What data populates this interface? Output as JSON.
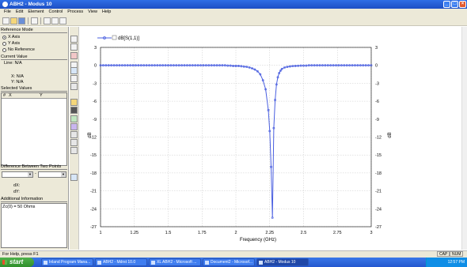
{
  "window": {
    "title": "ABH2 - Modus 10"
  },
  "menu": [
    "File",
    "Edit",
    "Element",
    "Control",
    "Process",
    "View",
    "Help"
  ],
  "left": {
    "reference_mode": {
      "title": "Reference Mode",
      "options": [
        "X Axis",
        "Y Axis",
        "No Reference"
      ],
      "selected": 0
    },
    "current_value": {
      "title": "Current Value",
      "line": "Line: N/A",
      "x": "X: N/A",
      "y": "Y: N/A"
    },
    "selected_values": {
      "title": "Selected Values",
      "columns": [
        "#",
        "X",
        "Y"
      ]
    },
    "difference": {
      "title": "Difference Between Two Points",
      "dx": "dX:",
      "dy": "dY:"
    },
    "additional": {
      "title": "Additional Information",
      "text": "Zc(0) = 50 Ohms"
    }
  },
  "status": {
    "text": "For Help, press F1",
    "caps": "CAP",
    "num": "NUM"
  },
  "taskbar": {
    "start": "start",
    "tasks": [
      "Inland Program Mana...",
      "ABH2 - Mdrst 10.0",
      "XL ABH2 - Microsoft ...",
      "Document2 - Microsof...",
      "ABH2 - Modus 10"
    ],
    "clock": "12:57 PM"
  },
  "chart_data": {
    "type": "line",
    "legend": "dB[S(1,1)]",
    "xlabel": "Frequency (GHz)",
    "ylabel": "dB",
    "xlim": [
      1,
      3
    ],
    "ylim": [
      -27,
      3
    ],
    "xticks": [
      1,
      1.25,
      1.5,
      1.75,
      2,
      2.25,
      2.5,
      2.75,
      3
    ],
    "yticks": [
      3,
      0,
      -3,
      -6,
      -9,
      -12,
      -15,
      -18,
      -21,
      -24,
      -27
    ],
    "xtick_labels": [
      "1",
      "1.25",
      "1.5",
      "1.75",
      "2",
      "2.25",
      "2.5",
      "2.75",
      "3"
    ],
    "ytick_labels": [
      "3",
      "0",
      "-3",
      "-6",
      "-9",
      "-12",
      "-15",
      "-18",
      "-21",
      "-24",
      "-27"
    ],
    "grid": true,
    "color": "#4a5fe0",
    "series": [
      {
        "name": "dB[S(1,1)]",
        "x": [
          1.0,
          1.02,
          1.04,
          1.06,
          1.08,
          1.1,
          1.12,
          1.14,
          1.16,
          1.18,
          1.2,
          1.22,
          1.24,
          1.26,
          1.28,
          1.3,
          1.32,
          1.34,
          1.36,
          1.38,
          1.4,
          1.42,
          1.44,
          1.46,
          1.48,
          1.5,
          1.52,
          1.54,
          1.56,
          1.58,
          1.6,
          1.62,
          1.64,
          1.66,
          1.68,
          1.7,
          1.72,
          1.74,
          1.76,
          1.78,
          1.8,
          1.82,
          1.84,
          1.86,
          1.88,
          1.9,
          1.92,
          1.94,
          1.96,
          1.98,
          2.0,
          2.02,
          2.04,
          2.06,
          2.08,
          2.1,
          2.12,
          2.14,
          2.16,
          2.18,
          2.2,
          2.22,
          2.24,
          2.25,
          2.26,
          2.27,
          2.28,
          2.29,
          2.3,
          2.31,
          2.32,
          2.33,
          2.34,
          2.36,
          2.38,
          2.4,
          2.42,
          2.44,
          2.46,
          2.48,
          2.5,
          2.52,
          2.54,
          2.56,
          2.58,
          2.6,
          2.62,
          2.64,
          2.66,
          2.68,
          2.7,
          2.72,
          2.74,
          2.76,
          2.78,
          2.8,
          2.82,
          2.84,
          2.86,
          2.88,
          2.9,
          2.92,
          2.94,
          2.96,
          2.98,
          3.0
        ],
        "y": [
          0,
          0,
          0,
          0,
          0,
          0,
          0,
          0,
          0,
          0,
          0,
          0,
          0,
          0,
          0,
          0,
          0,
          0,
          0,
          0,
          0,
          0,
          0,
          0,
          0,
          0,
          0,
          0,
          0,
          0,
          0,
          0,
          0,
          0,
          0,
          0,
          0,
          0,
          0,
          0,
          0,
          0,
          0,
          0,
          0,
          0,
          0,
          -0.05,
          -0.05,
          -0.1,
          -0.1,
          -0.1,
          -0.15,
          -0.2,
          -0.25,
          -0.35,
          -0.5,
          -0.7,
          -1.0,
          -1.5,
          -2.5,
          -4.0,
          -7.5,
          -11.0,
          -17.0,
          -25.5,
          -10.5,
          -5.8,
          -3.2,
          -2.0,
          -1.3,
          -0.9,
          -0.6,
          -0.35,
          -0.25,
          -0.18,
          -0.12,
          -0.1,
          -0.08,
          -0.05,
          -0.05,
          -0.05,
          0,
          0,
          0,
          0,
          0,
          0,
          0,
          0,
          0,
          0,
          0,
          0,
          0,
          0,
          0,
          0,
          0,
          0,
          0,
          0,
          0,
          0,
          0,
          0
        ]
      }
    ]
  }
}
